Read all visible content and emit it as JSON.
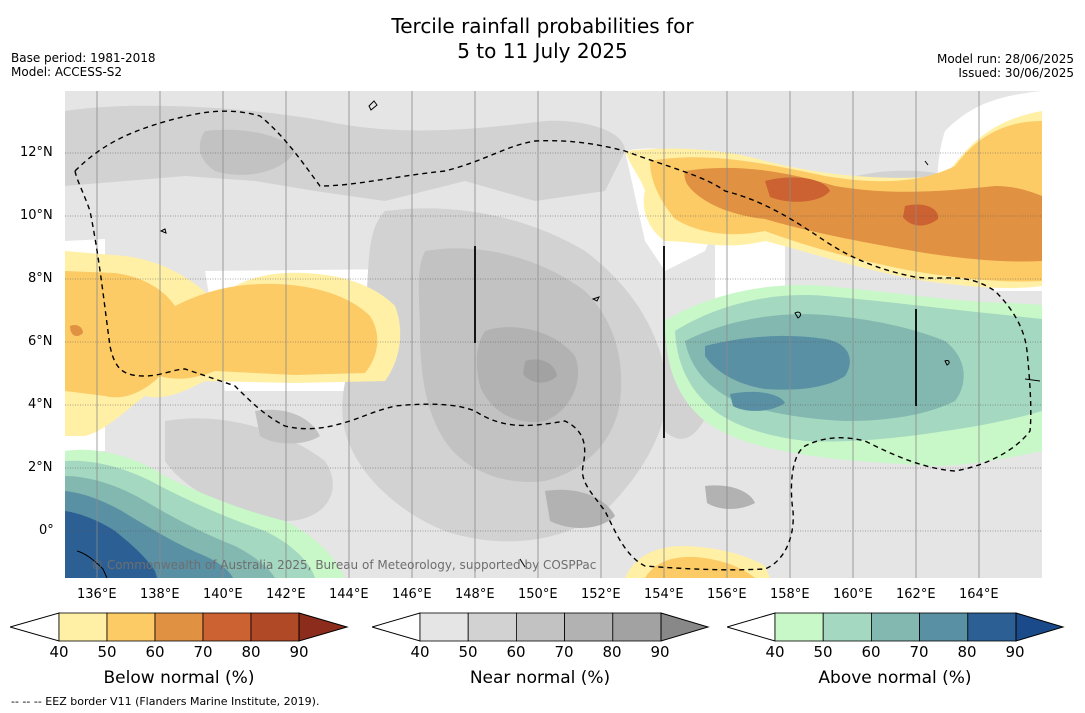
{
  "title_line1": "Tercile rainfall probabilities for",
  "title_line2": "5 to 11 July 2025",
  "base_period": "Base period: 1981-2018",
  "model": "Model: ACCESS-S2",
  "model_run": "Model run: 28/06/2025",
  "issued": "Issued: 30/06/2025",
  "copyright": "© Commonwealth of Australia 2025, Bureau of Meteorology, supported by COSPPac",
  "footnote": "--  --  -- EEZ border V11 (Flanders Marine Institute, 2019).",
  "lon_labels": [
    "136°E",
    "138°E",
    "140°E",
    "142°E",
    "144°E",
    "146°E",
    "148°E",
    "150°E",
    "152°E",
    "154°E",
    "156°E",
    "158°E",
    "160°E",
    "162°E",
    "164°E"
  ],
  "lat_labels": [
    "12°N",
    "10°N",
    "8°N",
    "6°N",
    "4°N",
    "2°N",
    "0°"
  ],
  "colorbars": {
    "below": {
      "title": "Below normal (%)",
      "ticks": [
        "40",
        "50",
        "60",
        "70",
        "80",
        "90"
      ],
      "colors": [
        "#fff0a6",
        "#fccb66",
        "#e09242",
        "#cc6232",
        "#b04a26"
      ],
      "extend_color": "#8c2c1c"
    },
    "near": {
      "title": "Near normal (%)",
      "ticks": [
        "40",
        "50",
        "60",
        "70",
        "80",
        "90"
      ],
      "colors": [
        "#e5e5e5",
        "#d2d2d2",
        "#c2c2c2",
        "#b2b2b2",
        "#a2a2a2"
      ],
      "extend_color": "#888888"
    },
    "above": {
      "title": "Above normal (%)",
      "ticks": [
        "40",
        "50",
        "60",
        "70",
        "80",
        "90"
      ],
      "colors": [
        "#c8f7c8",
        "#a4d8c0",
        "#82b8b0",
        "#5a90a4",
        "#2c6094"
      ],
      "extend_color": "#1a4a8a"
    }
  }
}
